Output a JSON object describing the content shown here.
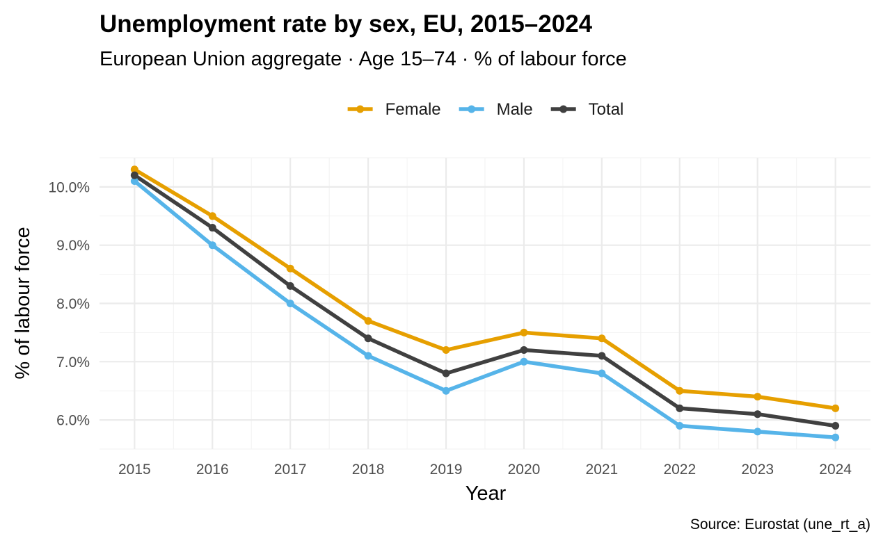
{
  "chart_data": {
    "type": "line",
    "title": "Unemployment rate by sex, EU, 2015–2024",
    "subtitle": "European Union aggregate · Age 15–74 · % of labour force",
    "xlabel": "Year",
    "ylabel": "% of labour force",
    "caption": "Source: Eurostat (une_rt_a)",
    "x": [
      2015,
      2016,
      2017,
      2018,
      2019,
      2020,
      2021,
      2022,
      2023,
      2024
    ],
    "x_tick_labels": [
      "2015",
      "2016",
      "2017",
      "2018",
      "2019",
      "2020",
      "2021",
      "2022",
      "2023",
      "2024"
    ],
    "y_ticks": [
      6,
      7,
      8,
      9,
      10
    ],
    "y_tick_labels": [
      "6.0%",
      "7.0%",
      "8.0%",
      "9.0%",
      "10.0%"
    ],
    "ylim": [
      5.5,
      10.5
    ],
    "xlim": [
      2014.55,
      2024.45
    ],
    "grid": true,
    "legend_position": "top",
    "series": [
      {
        "name": "Female",
        "color": "#E69F00",
        "values": [
          10.3,
          9.5,
          8.6,
          7.7,
          7.2,
          7.5,
          7.4,
          6.5,
          6.4,
          6.2
        ]
      },
      {
        "name": "Male",
        "color": "#56B4E9",
        "values": [
          10.1,
          9.0,
          8.0,
          7.1,
          6.5,
          7.0,
          6.8,
          5.9,
          5.8,
          5.7
        ]
      },
      {
        "name": "Total",
        "color": "#404040",
        "values": [
          10.2,
          9.3,
          8.3,
          7.4,
          6.8,
          7.2,
          7.1,
          6.2,
          6.1,
          5.9
        ]
      }
    ]
  }
}
